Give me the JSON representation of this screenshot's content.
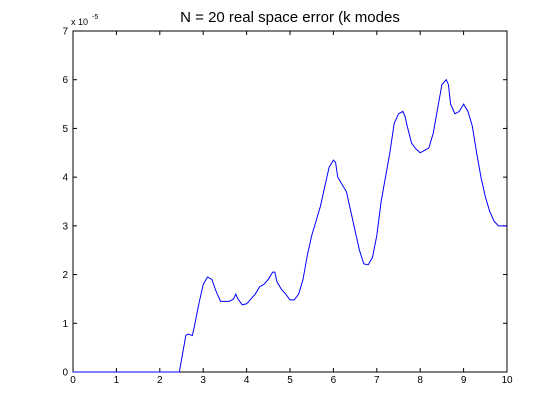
{
  "chart_data": {
    "type": "line",
    "title": "N = 20 real space error (k modes",
    "xlabel": "",
    "ylabel": "",
    "xlim": [
      0,
      10
    ],
    "ylim": [
      0,
      7
    ],
    "x_ticks": [
      "0",
      "1",
      "2",
      "3",
      "4",
      "5",
      "6",
      "7",
      "8",
      "9",
      "10"
    ],
    "y_ticks": [
      "0",
      "1",
      "2",
      "3",
      "4",
      "5",
      "6",
      "7"
    ],
    "y_multiplier": {
      "base": "x 10",
      "exponent": "-5"
    },
    "grid": false,
    "line_color": "#0000ff",
    "series": [
      {
        "x": [
          0,
          1,
          2,
          2.45,
          2.5,
          2.6,
          2.65,
          2.75,
          2.8,
          2.9,
          3.0,
          3.1,
          3.2,
          3.3,
          3.4,
          3.5,
          3.6,
          3.7,
          3.75,
          3.8,
          3.9,
          4.0,
          4.1,
          4.2,
          4.3,
          4.4,
          4.5,
          4.6,
          4.65,
          4.7,
          4.8,
          4.9,
          5.0,
          5.1,
          5.2,
          5.3,
          5.4,
          5.5,
          5.6,
          5.7,
          5.8,
          5.9,
          6.0,
          6.05,
          6.1,
          6.2,
          6.3,
          6.4,
          6.5,
          6.6,
          6.7,
          6.8,
          6.9,
          7.0,
          7.1,
          7.2,
          7.3,
          7.4,
          7.5,
          7.6,
          7.65,
          7.7,
          7.8,
          7.9,
          8.0,
          8.1,
          8.2,
          8.3,
          8.4,
          8.5,
          8.6,
          8.65,
          8.7,
          8.8,
          8.9,
          9.0,
          9.1,
          9.2,
          9.3,
          9.4,
          9.5,
          9.6,
          9.7,
          9.8,
          9.9,
          10.0
        ],
        "y": [
          0,
          0,
          0,
          0,
          0.25,
          0.75,
          0.78,
          0.75,
          0.95,
          1.4,
          1.8,
          1.95,
          1.9,
          1.65,
          1.45,
          1.45,
          1.45,
          1.5,
          1.6,
          1.5,
          1.38,
          1.4,
          1.5,
          1.6,
          1.75,
          1.8,
          1.9,
          2.05,
          2.05,
          1.85,
          1.7,
          1.6,
          1.48,
          1.48,
          1.6,
          1.9,
          2.4,
          2.8,
          3.1,
          3.4,
          3.8,
          4.2,
          4.35,
          4.3,
          4.0,
          3.85,
          3.7,
          3.3,
          2.9,
          2.5,
          2.22,
          2.2,
          2.35,
          2.8,
          3.5,
          4.0,
          4.5,
          5.1,
          5.3,
          5.35,
          5.25,
          5.05,
          4.7,
          4.58,
          4.5,
          4.55,
          4.6,
          4.9,
          5.4,
          5.9,
          6.0,
          5.9,
          5.5,
          5.3,
          5.35,
          5.5,
          5.35,
          5.05,
          4.5,
          4.0,
          3.6,
          3.3,
          3.1,
          3.0,
          3.0,
          3.0
        ]
      }
    ]
  }
}
